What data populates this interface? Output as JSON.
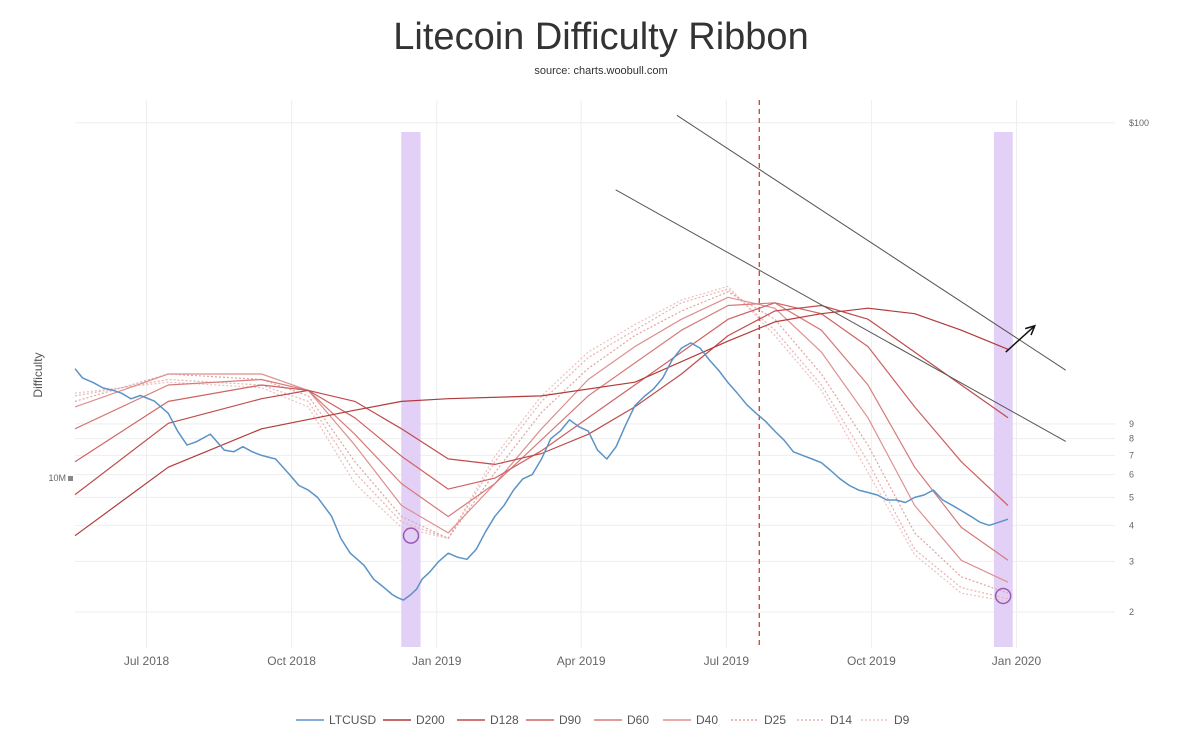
{
  "chart_data": {
    "type": "line",
    "title": "Litecoin Difficulty Ribbon",
    "subtitle": "source: charts.woobull.com",
    "ylabel": "Difficulty",
    "x_ticks": [
      "Jul 2018",
      "Oct 2018",
      "Jan 2019",
      "Apr 2019",
      "Jul 2019",
      "Oct 2019",
      "Jan 2020"
    ],
    "x_tick_pos": [
      0.0767,
      0.2322,
      0.3877,
      0.5425,
      0.6981,
      0.8536,
      1.0091
    ],
    "left_axis": {
      "label": "10M",
      "scale": "log"
    },
    "right_axis": {
      "scale": "log",
      "range": [
        1.5,
        120
      ],
      "ticks": [
        "$100",
        "9",
        "8",
        "7",
        "6",
        "5",
        "4",
        "3",
        "2"
      ],
      "tick_values": [
        100,
        9,
        8,
        7,
        6,
        5,
        4,
        3,
        2
      ]
    },
    "vertical_lines": [
      {
        "x": 0.7334,
        "style": "dashed",
        "color": "#d62728"
      }
    ],
    "highlight_bands": [
      {
        "x0": 0.3497,
        "x1": 0.3704
      },
      {
        "x0": 0.9849,
        "x1": 1.0051
      }
    ],
    "circles": [
      {
        "x": 0.3601,
        "y": 0.795
      },
      {
        "x": 0.9948,
        "y": 0.905
      }
    ],
    "trend_lines": [
      {
        "x0": 0.5795,
        "y0": 0.164,
        "x1": 1.0619,
        "y1": 0.623
      },
      {
        "x0": 0.6451,
        "y0": 0.028,
        "x1": 1.0619,
        "y1": 0.493
      }
    ],
    "arrow": {
      "x0": 0.9976,
      "y0": 0.46,
      "x1": 1.0287,
      "y1": 0.412
    },
    "series": [
      {
        "name": "LTCUSD",
        "color": "#5b93c7",
        "style": "solid",
        "x": [
          0,
          0.008,
          0.02,
          0.03,
          0.04,
          0.05,
          0.06,
          0.07,
          0.085,
          0.1,
          0.11,
          0.12,
          0.13,
          0.145,
          0.16,
          0.17,
          0.18,
          0.19,
          0.2,
          0.215,
          0.23,
          0.24,
          0.25,
          0.26,
          0.275,
          0.285,
          0.295,
          0.3,
          0.31,
          0.32,
          0.33,
          0.34,
          0.345,
          0.352,
          0.36,
          0.366,
          0.372,
          0.38,
          0.39,
          0.4,
          0.41,
          0.42,
          0.43,
          0.44,
          0.45,
          0.46,
          0.47,
          0.48,
          0.49,
          0.5,
          0.51,
          0.52,
          0.53,
          0.54,
          0.55,
          0.56,
          0.57,
          0.58,
          0.59,
          0.6,
          0.61,
          0.62,
          0.63,
          0.64,
          0.65,
          0.66,
          0.67,
          0.68,
          0.69,
          0.7,
          0.71,
          0.72,
          0.73,
          0.74,
          0.75,
          0.76,
          0.77,
          0.78,
          0.79,
          0.8,
          0.81,
          0.82,
          0.83,
          0.84,
          0.85,
          0.86,
          0.87,
          0.88,
          0.89,
          0.9,
          0.91,
          0.92,
          0.93,
          0.94,
          0.95,
          0.96,
          0.97,
          0.98,
          0.99,
          1.0
        ],
        "y": [
          14.0,
          13.0,
          12.5,
          12.0,
          11.8,
          11.5,
          11.0,
          11.3,
          10.8,
          9.8,
          8.5,
          7.6,
          7.8,
          8.3,
          7.3,
          7.2,
          7.5,
          7.2,
          7.0,
          6.8,
          6.0,
          5.5,
          5.3,
          5.0,
          4.3,
          3.6,
          3.2,
          3.1,
          2.9,
          2.6,
          2.45,
          2.3,
          2.25,
          2.2,
          2.3,
          2.4,
          2.6,
          2.75,
          3.0,
          3.2,
          3.1,
          3.05,
          3.3,
          3.8,
          4.3,
          4.7,
          5.3,
          5.8,
          6.0,
          6.8,
          8.0,
          8.5,
          9.3,
          8.8,
          8.5,
          7.3,
          6.8,
          7.5,
          8.9,
          10.4,
          11.2,
          11.9,
          13.0,
          15.0,
          16.5,
          17.2,
          16.5,
          15.0,
          13.8,
          12.5,
          11.5,
          10.5,
          9.8,
          9.2,
          8.5,
          7.9,
          7.2,
          7.0,
          6.8,
          6.6,
          6.2,
          5.8,
          5.5,
          5.3,
          5.2,
          5.1,
          4.9,
          4.9,
          4.8,
          5.0,
          5.1,
          5.3,
          4.9,
          4.7,
          4.5,
          4.3,
          4.1,
          4.0,
          4.1,
          4.2
        ]
      },
      {
        "name": "D200",
        "color": "#b23a3a",
        "style": "solid",
        "x": [
          0,
          0.1,
          0.2,
          0.3,
          0.35,
          0.4,
          0.5,
          0.6,
          0.7,
          0.75,
          0.8,
          0.85,
          0.9,
          0.95,
          1.0
        ],
        "y": [
          0.795,
          0.67,
          0.6,
          0.566,
          0.55,
          0.545,
          0.54,
          0.515,
          0.44,
          0.405,
          0.39,
          0.38,
          0.39,
          0.42,
          0.455
        ]
      },
      {
        "name": "D128",
        "color": "#c14b4b",
        "style": "solid",
        "x": [
          0,
          0.1,
          0.2,
          0.25,
          0.3,
          0.35,
          0.4,
          0.45,
          0.5,
          0.55,
          0.6,
          0.65,
          0.7,
          0.75,
          0.8,
          0.85,
          0.9,
          0.95,
          1.0
        ],
        "y": [
          0.72,
          0.59,
          0.545,
          0.53,
          0.55,
          0.6,
          0.655,
          0.665,
          0.645,
          0.61,
          0.56,
          0.5,
          0.43,
          0.385,
          0.375,
          0.4,
          0.46,
          0.52,
          0.58
        ]
      },
      {
        "name": "D90",
        "color": "#cf6262",
        "style": "solid",
        "x": [
          0,
          0.1,
          0.2,
          0.25,
          0.3,
          0.35,
          0.4,
          0.45,
          0.5,
          0.55,
          0.6,
          0.65,
          0.7,
          0.75,
          0.8,
          0.85,
          0.9,
          0.95,
          1.0
        ],
        "y": [
          0.66,
          0.55,
          0.52,
          0.53,
          0.58,
          0.65,
          0.71,
          0.69,
          0.64,
          0.58,
          0.52,
          0.46,
          0.4,
          0.37,
          0.39,
          0.45,
          0.56,
          0.66,
          0.74
        ]
      },
      {
        "name": "D60",
        "color": "#d77a7a",
        "style": "solid",
        "x": [
          0,
          0.1,
          0.2,
          0.25,
          0.3,
          0.35,
          0.4,
          0.45,
          0.5,
          0.55,
          0.6,
          0.65,
          0.7,
          0.75,
          0.8,
          0.85,
          0.9,
          0.95,
          1.0
        ],
        "y": [
          0.6,
          0.52,
          0.51,
          0.53,
          0.61,
          0.7,
          0.76,
          0.7,
          0.62,
          0.54,
          0.48,
          0.42,
          0.375,
          0.37,
          0.42,
          0.52,
          0.67,
          0.78,
          0.84
        ]
      },
      {
        "name": "D40",
        "color": "#de9090",
        "style": "solid",
        "x": [
          0,
          0.1,
          0.2,
          0.25,
          0.3,
          0.35,
          0.4,
          0.45,
          0.5,
          0.55,
          0.6,
          0.65,
          0.7,
          0.75,
          0.8,
          0.85,
          0.9,
          0.95,
          1.0
        ],
        "y": [
          0.56,
          0.5,
          0.5,
          0.53,
          0.63,
          0.74,
          0.79,
          0.7,
          0.6,
          0.51,
          0.45,
          0.4,
          0.36,
          0.38,
          0.46,
          0.58,
          0.74,
          0.84,
          0.88
        ]
      },
      {
        "name": "D25",
        "color": "#e2a3a3",
        "style": "dashed",
        "x": [
          0,
          0.1,
          0.2,
          0.25,
          0.3,
          0.35,
          0.4,
          0.45,
          0.5,
          0.55,
          0.6,
          0.65,
          0.7,
          0.75,
          0.8,
          0.85,
          0.9,
          0.95,
          1.0
        ],
        "y": [
          0.55,
          0.5,
          0.51,
          0.54,
          0.66,
          0.76,
          0.8,
          0.68,
          0.57,
          0.49,
          0.43,
          0.385,
          0.35,
          0.4,
          0.5,
          0.63,
          0.79,
          0.87,
          0.9
        ]
      },
      {
        "name": "D14",
        "color": "#e8b2b2",
        "style": "dashed",
        "x": [
          0,
          0.1,
          0.2,
          0.25,
          0.3,
          0.35,
          0.4,
          0.45,
          0.5,
          0.55,
          0.6,
          0.65,
          0.7,
          0.75,
          0.8,
          0.85,
          0.9,
          0.95,
          1.0
        ],
        "y": [
          0.54,
          0.51,
          0.52,
          0.55,
          0.68,
          0.77,
          0.8,
          0.66,
          0.55,
          0.47,
          0.42,
          0.37,
          0.345,
          0.42,
          0.52,
          0.66,
          0.82,
          0.89,
          0.91
        ]
      },
      {
        "name": "D9",
        "color": "#edc0c0",
        "style": "dashed",
        "x": [
          0,
          0.1,
          0.2,
          0.25,
          0.3,
          0.35,
          0.4,
          0.45,
          0.5,
          0.55,
          0.6,
          0.65,
          0.7,
          0.75,
          0.8,
          0.85,
          0.9,
          0.95,
          1.0
        ],
        "y": [
          0.535,
          0.515,
          0.525,
          0.56,
          0.7,
          0.78,
          0.8,
          0.65,
          0.54,
          0.46,
          0.41,
          0.365,
          0.34,
          0.43,
          0.53,
          0.68,
          0.83,
          0.9,
          0.915
        ]
      }
    ]
  }
}
